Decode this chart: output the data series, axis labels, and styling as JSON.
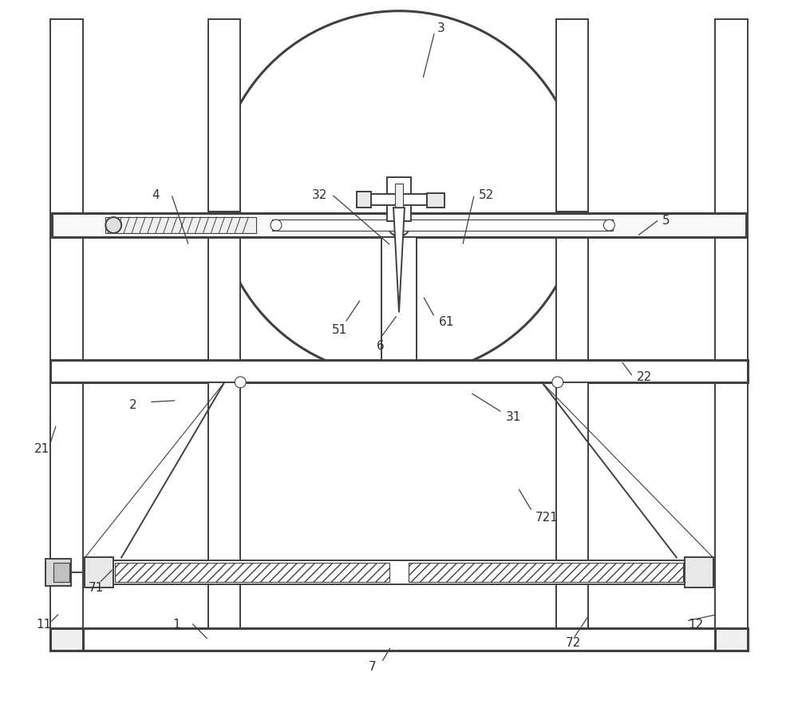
{
  "bg_color": "#ffffff",
  "line_color": "#404040",
  "label_color": "#303030",
  "fig_width": 10.0,
  "fig_height": 9.03,
  "lw_main": 1.4,
  "lw_thick": 2.2,
  "lw_thin": 0.8
}
